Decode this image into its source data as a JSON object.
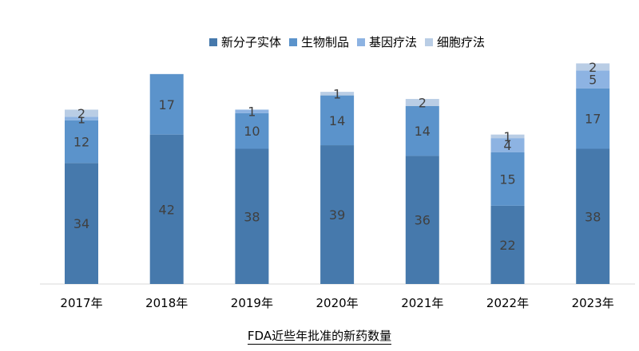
{
  "chart_data": {
    "type": "bar",
    "stacked": true,
    "categories": [
      "2017年",
      "2018年",
      "2019年",
      "2020年",
      "2021年",
      "2022年",
      "2023年"
    ],
    "series": [
      {
        "name": "新分子实体",
        "color": "#4679ac",
        "values": [
          34,
          42,
          38,
          39,
          36,
          22,
          38
        ]
      },
      {
        "name": "生物制品",
        "color": "#5b93cb",
        "values": [
          12,
          17,
          10,
          14,
          14,
          15,
          17
        ]
      },
      {
        "name": "基因疗法",
        "color": "#8db3e2",
        "values": [
          1,
          0,
          1,
          0,
          0,
          4,
          5
        ]
      },
      {
        "name": "细胞疗法",
        "color": "#b9cde5",
        "values": [
          2,
          0,
          0,
          1,
          2,
          1,
          2
        ]
      }
    ],
    "data_labels": [
      [
        "34",
        "42",
        "38",
        "39",
        "36",
        "22",
        "38"
      ],
      [
        "12",
        "17",
        "10",
        "14",
        "14",
        "15",
        "17"
      ],
      [
        "1",
        "",
        "1",
        "",
        "",
        "4",
        "5"
      ],
      [
        "2",
        "",
        "",
        "1",
        "2",
        "1",
        "2"
      ]
    ],
    "ylim": [
      0,
      63
    ],
    "grid": false,
    "legend_position": "top",
    "caption": "FDA近些年批准的新药数量"
  }
}
